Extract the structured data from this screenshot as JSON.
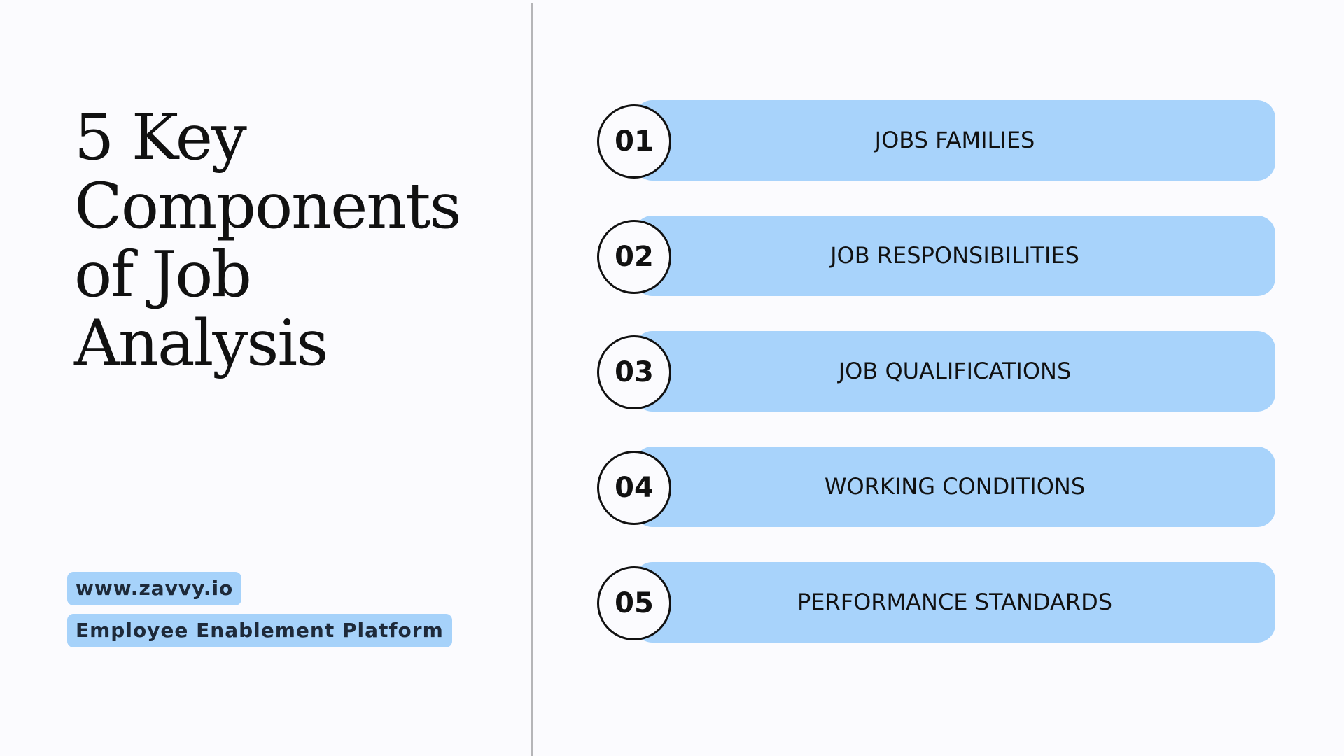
{
  "title": {
    "lines": [
      "5 Key",
      "Components",
      "of Job",
      "Analysis"
    ]
  },
  "badges": [
    "www.zavvy.io",
    "Employee Enablement Platform"
  ],
  "items": [
    {
      "number": "01",
      "label": "JOBS FAMILIES"
    },
    {
      "number": "02",
      "label": "JOB RESPONSIBILITIES"
    },
    {
      "number": "03",
      "label": "JOB QUALIFICATIONS"
    },
    {
      "number": "04",
      "label": "WORKING CONDITIONS"
    },
    {
      "number": "05",
      "label": "PERFORMANCE STANDARDS"
    }
  ]
}
